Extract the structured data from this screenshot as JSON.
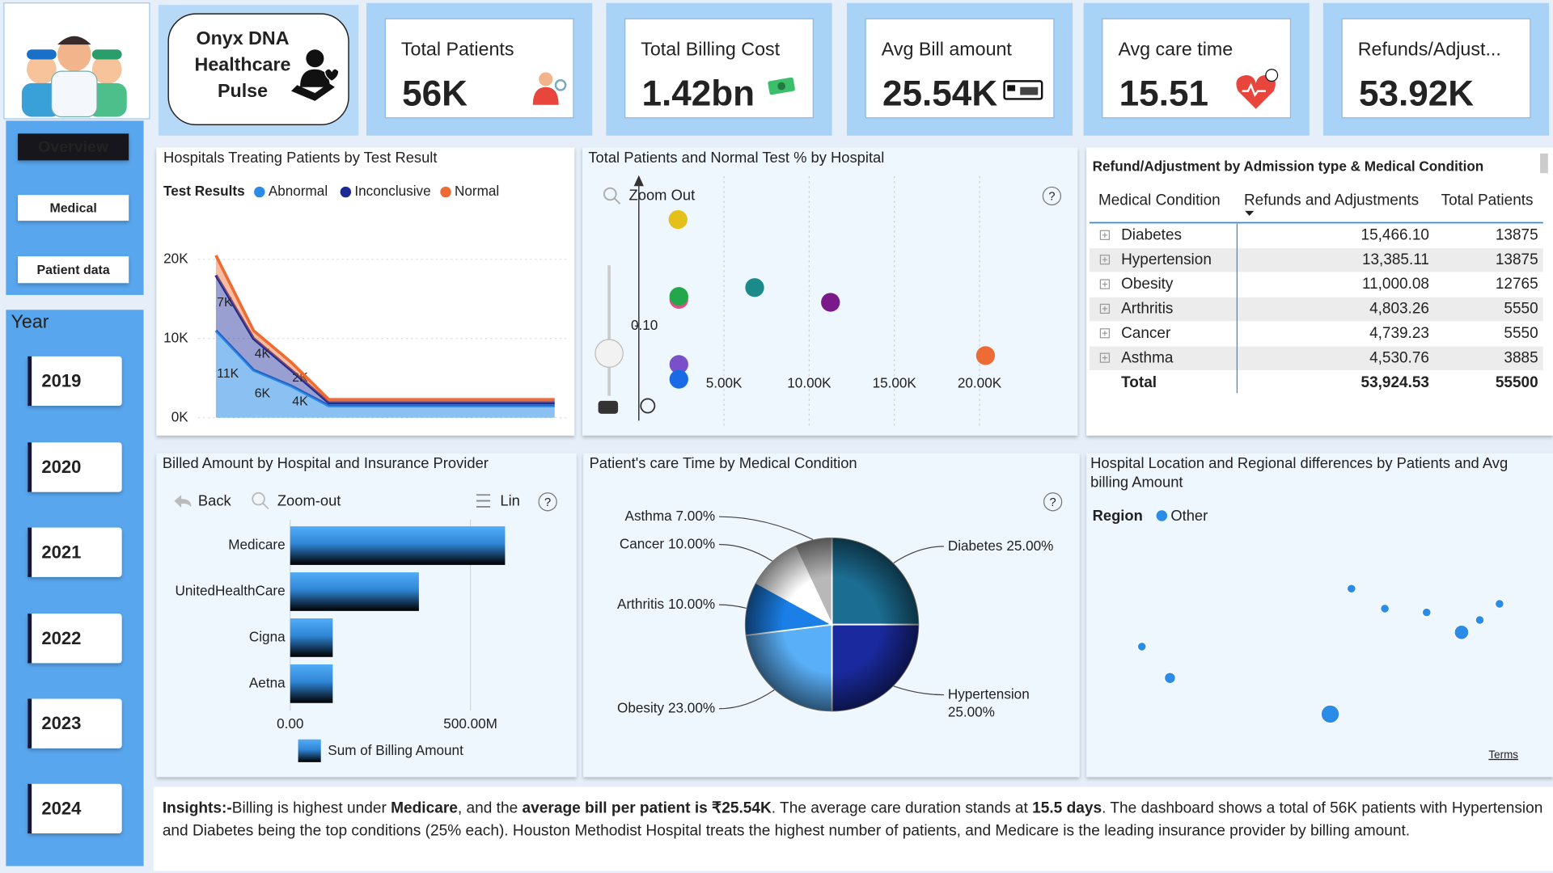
{
  "nav": {
    "title_lines": [
      "Onyx DNA",
      "Healthcare",
      "Pulse"
    ],
    "buttons": [
      "Overview",
      "Medical",
      "Patient data"
    ],
    "year_label": "Year",
    "years": [
      "2019",
      "2020",
      "2021",
      "2022",
      "2023",
      "2024"
    ]
  },
  "kpis": [
    {
      "label": "Total Patients",
      "value": "56K"
    },
    {
      "label": "Total Billing Cost",
      "value": "1.42bn"
    },
    {
      "label": "Avg Bill amount",
      "value": "25.54K"
    },
    {
      "label": "Avg care time",
      "value": "15.51"
    },
    {
      "label": "Refunds/Adjust...",
      "value": "53.92K"
    }
  ],
  "table": {
    "title": "Refund/Adjustment by Admission type & Medical Condition",
    "columns": [
      "Medical Condition",
      "Refunds and Adjustments",
      "Total Patients"
    ],
    "rows": [
      [
        "Diabetes",
        "15,466.10",
        "13875"
      ],
      [
        "Hypertension",
        "13,385.11",
        "13875"
      ],
      [
        "Obesity",
        "11,000.08",
        "12765"
      ],
      [
        "Arthritis",
        "4,803.26",
        "5550"
      ],
      [
        "Cancer",
        "4,739.23",
        "5550"
      ],
      [
        "Asthma",
        "4,530.76",
        "3885"
      ]
    ],
    "total": [
      "Total",
      "53,924.53",
      "55500"
    ]
  },
  "insights": [
    {
      "text": "Insights:-",
      "bold": true
    },
    {
      "text": "Billing is highest under "
    },
    {
      "text": "Medicare",
      "bold": true
    },
    {
      "text": ", and the "
    },
    {
      "text": "average bill per patient is ₹25.54K",
      "bold": true
    },
    {
      "text": ". The average care duration stands at "
    },
    {
      "text": "15.5 days",
      "bold": true
    },
    {
      "text": ". The dashboard shows a total of 56K patients with Hypertension and Diabetes being the top conditions (25% each). Houston Methodist Hospital treats the highest number of patients, and Medicare is the leading insurance provider by billing amount."
    }
  ],
  "chart_data": [
    {
      "type": "area",
      "title": "Hospitals Treating Patients by Test Result",
      "legend_title": "Test Results",
      "stacked": true,
      "categories": [
        null,
        null,
        null,
        null,
        null,
        null,
        null,
        null,
        null,
        null
      ],
      "series": [
        {
          "name": "Abnormal",
          "color": "#2b8ce8",
          "values": [
            11000,
            6000,
            4000,
            1500,
            1500,
            1500,
            1500,
            1500,
            1500,
            1500
          ],
          "value_labels": [
            "11K",
            "6K",
            "4K",
            null,
            null,
            null,
            null,
            null,
            null,
            null
          ]
        },
        {
          "name": "Inconclusive",
          "color": "#1c2a96",
          "values": [
            7000,
            4000,
            2000,
            400,
            400,
            400,
            400,
            400,
            400,
            400
          ],
          "value_labels": [
            "7K",
            "4K",
            "2K",
            null,
            null,
            null,
            null,
            null,
            null,
            null
          ]
        },
        {
          "name": "Normal",
          "color": "#ee6c34",
          "values": [
            2500,
            1000,
            1000,
            400,
            400,
            400,
            400,
            400,
            400,
            400
          ]
        }
      ],
      "ylim": [
        0,
        22000
      ],
      "yticks": [
        {
          "value": 0,
          "label": "0K"
        },
        {
          "value": 10000,
          "label": "10K"
        },
        {
          "value": 20000,
          "label": "20K"
        }
      ],
      "grid": true
    },
    {
      "type": "scatter",
      "title": "Total Patients and Normal Test % by Hospital",
      "toolbar": [
        "Zoom Out"
      ],
      "x": [
        2300,
        2350,
        2350,
        6800,
        11250,
        20350,
        2350,
        2350
      ],
      "values": [
        0.136,
        0.109,
        0.11,
        0.113,
        0.108,
        0.09,
        0.087,
        0.082
      ],
      "colors": [
        "#e3c01a",
        "#e0508a",
        "#22a84a",
        "#1a8a8a",
        "#7a1a8a",
        "#ee6c34",
        "#7a50c8",
        "#1a6ae8"
      ],
      "xlim": [
        0,
        25000
      ],
      "ylim": [
        0.073,
        0.15
      ],
      "xticks": [
        {
          "value": 5000,
          "label": "5.00K"
        },
        {
          "value": 10000,
          "label": "10.00K"
        },
        {
          "value": 15000,
          "label": "15.00K"
        },
        {
          "value": 20000,
          "label": "20.00K"
        }
      ],
      "yticks": [
        {
          "value": 0.1,
          "label": "0.10"
        }
      ],
      "grid": true
    },
    {
      "type": "bar",
      "orientation": "horizontal",
      "title": "Billed Amount by Hospital and Insurance Provider",
      "toolbar": [
        "Back",
        "Zoom-out",
        "Lin"
      ],
      "categories": [
        "Medicare",
        "UnitedHealthCare",
        "Cigna",
        "Aetna"
      ],
      "series": [
        {
          "name": "Sum of Billing Amount",
          "color": "#3a9af0",
          "values": [
            596000000,
            357000000,
            118000000,
            118000000
          ]
        }
      ],
      "xlim": [
        0,
        730000000
      ],
      "xticks": [
        {
          "value": 0,
          "label": "0.00"
        },
        {
          "value": 500000000,
          "label": "500.00M"
        }
      ],
      "grid": true
    },
    {
      "type": "pie",
      "title": "Patient's care Time by Medical Condition",
      "categories": [
        "Diabetes",
        "Hypertension",
        "Obesity",
        "Arthritis",
        "Cancer",
        "Asthma"
      ],
      "values": [
        25,
        25,
        23,
        10,
        10,
        7
      ],
      "value_labels": [
        "25.00%",
        "25.00%",
        "23.00%",
        "10.00%",
        "10.00%",
        "7.00%"
      ],
      "colors": [
        "#1b6d92",
        "#1a2a9e",
        "#5ab0f8",
        "#1a80e8",
        "#ffffff",
        "#b8b8b8"
      ]
    },
    {
      "type": "map",
      "title": "Hospital Location and Regional differences by Patients and Avg billing Amount",
      "legend_title": "Region",
      "attribution": "Terms",
      "series": [
        {
          "name": "Other",
          "color": "#2b8ce8",
          "x": [
            -118.1,
            -114.4,
            -93.3,
            -90.5,
            -86.1,
            -80.6,
            -76.0,
            -73.6,
            -71.0
          ],
          "values": [
            38.2,
            34.9,
            31.1,
            44.3,
            42.2,
            41.8,
            39.7,
            41.0,
            42.7
          ],
          "sizes": [
            1,
            1.5,
            3,
            1,
            1,
            1,
            2.2,
            1,
            1
          ]
        }
      ],
      "xlim": [
        -125,
        -65
      ],
      "ylim": [
        25,
        50
      ]
    }
  ]
}
